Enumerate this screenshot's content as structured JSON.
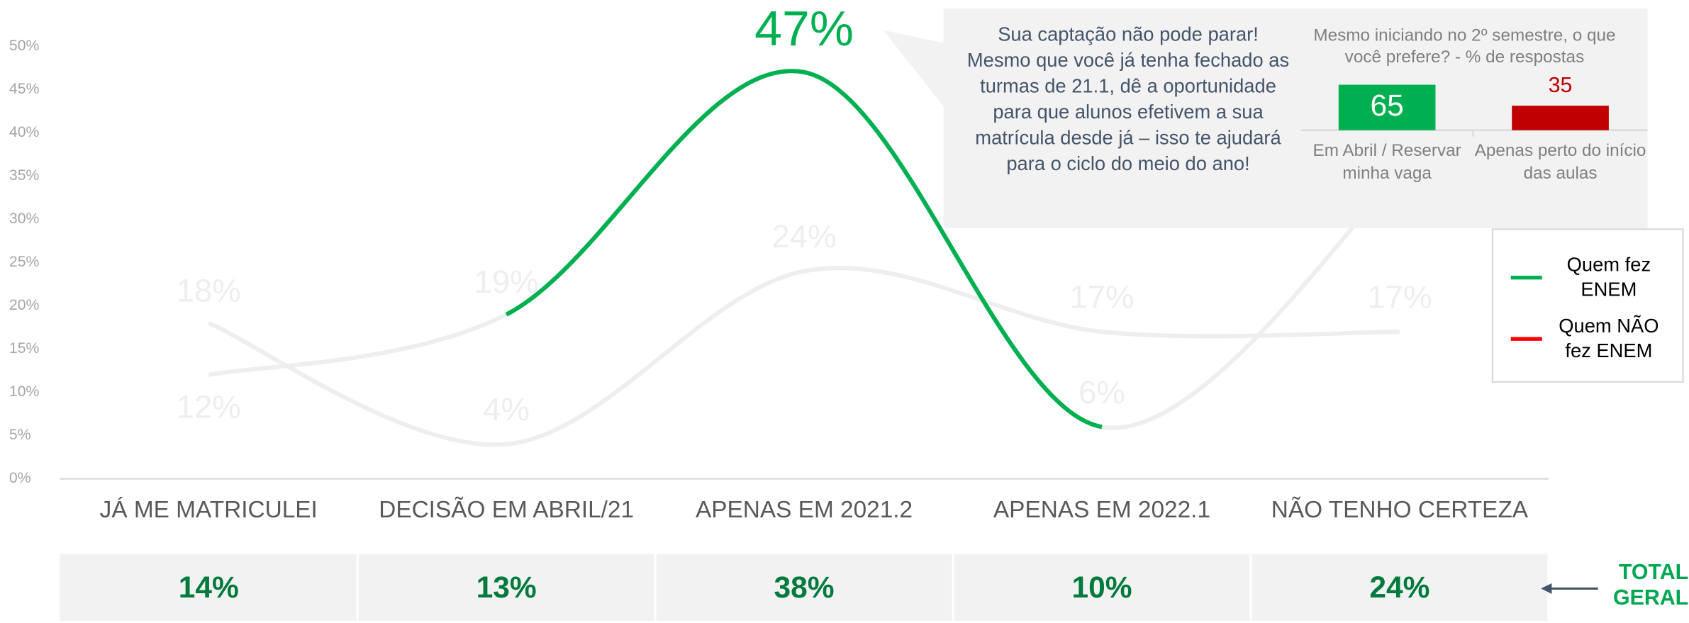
{
  "chart_data": {
    "type": "line",
    "categories": [
      "JÁ ME MATRICULEI",
      "DECISÃO EM ABRIL/21",
      "APENAS EM 2021.2",
      "APENAS EM 2022.1",
      "NÃO TENHO CERTEZA"
    ],
    "series": [
      {
        "name": "Quem fez ENEM",
        "color": "#00b050",
        "values": [
          12,
          19,
          47,
          6,
          35
        ],
        "value_labels": [
          "12%",
          "19%",
          "47%",
          "6%",
          null
        ]
      },
      {
        "name": "Quem NÃO fez ENEM",
        "color": "#ff0000",
        "values": [
          18,
          4,
          24,
          17,
          17
        ],
        "value_labels": [
          "18%",
          "4%",
          "24%",
          "17%",
          "17%"
        ]
      }
    ],
    "muted_color": "#eeeeee",
    "highlight": {
      "series": 0,
      "from": 1,
      "to": 3
    },
    "ylim": [
      0,
      50
    ],
    "yticks": [
      {
        "value": 0,
        "label": "0%"
      },
      {
        "value": 5,
        "label": "5%"
      },
      {
        "value": 10,
        "label": "10%"
      },
      {
        "value": 15,
        "label": "15%"
      },
      {
        "value": 20,
        "label": "20%"
      },
      {
        "value": 25,
        "label": "25%"
      },
      {
        "value": 30,
        "label": "30%"
      },
      {
        "value": 35,
        "label": "35%"
      },
      {
        "value": 40,
        "label": "40%"
      },
      {
        "value": 45,
        "label": "45%"
      },
      {
        "value": 50,
        "label": "50%"
      }
    ],
    "legend_position": "right",
    "callout": {
      "text": "Sua captação não pode parar! Mesmo que você já tenha fechado as turmas de 21.1, dê a oportunidade para que alunos efetivem a sua matrícula desde já – isso te ajudará para o ciclo do meio do ano!",
      "chart": {
        "type": "bar",
        "title": "Mesmo iniciando no 2º semestre, o que você prefere? - % de respostas",
        "categories": [
          "Em Abril / Reservar minha vaga",
          "Apenas perto do início das aulas"
        ],
        "values": [
          65,
          35
        ],
        "colors": [
          "#00b050",
          "#c00000"
        ]
      }
    },
    "totals": {
      "label": "TOTAL GERAL",
      "values": [
        14,
        13,
        38,
        10,
        24
      ],
      "value_labels": [
        "14%",
        "13%",
        "38%",
        "10%",
        "24%"
      ]
    }
  }
}
